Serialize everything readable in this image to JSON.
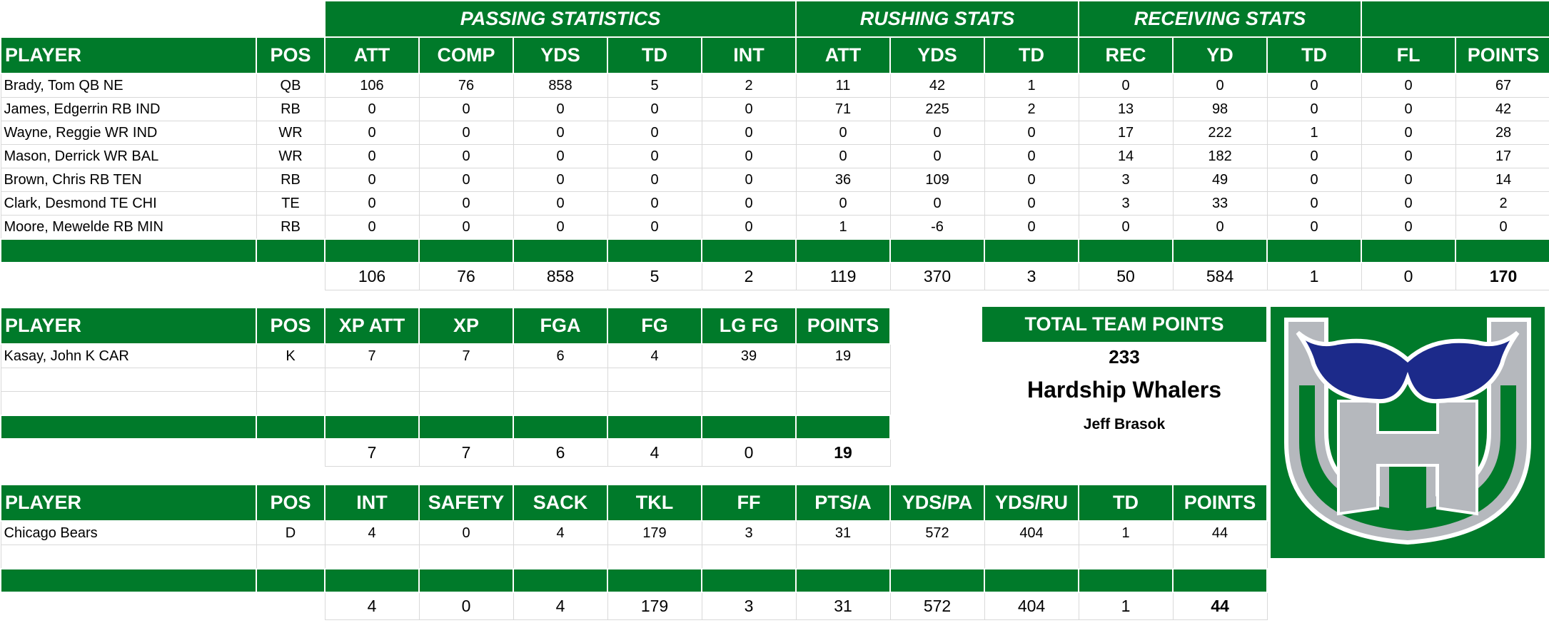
{
  "offense": {
    "group_headers": [
      "PASSING STATISTICS",
      "RUSHING STATS",
      "RECEIVING STATS"
    ],
    "columns": [
      "PLAYER",
      "POS",
      "ATT",
      "COMP",
      "YDS",
      "TD",
      "INT",
      "ATT",
      "YDS",
      "TD",
      "REC",
      "YD",
      "TD",
      "FL",
      "POINTS"
    ],
    "rows": [
      [
        "Brady, Tom QB NE",
        "QB",
        "106",
        "76",
        "858",
        "5",
        "2",
        "11",
        "42",
        "1",
        "0",
        "0",
        "0",
        "0",
        "67"
      ],
      [
        "James, Edgerrin RB IND",
        "RB",
        "0",
        "0",
        "0",
        "0",
        "0",
        "71",
        "225",
        "2",
        "13",
        "98",
        "0",
        "0",
        "42"
      ],
      [
        "Wayne, Reggie WR IND",
        "WR",
        "0",
        "0",
        "0",
        "0",
        "0",
        "0",
        "0",
        "0",
        "17",
        "222",
        "1",
        "0",
        "28"
      ],
      [
        "Mason, Derrick WR BAL",
        "WR",
        "0",
        "0",
        "0",
        "0",
        "0",
        "0",
        "0",
        "0",
        "14",
        "182",
        "0",
        "0",
        "17"
      ],
      [
        "Brown, Chris RB TEN",
        "RB",
        "0",
        "0",
        "0",
        "0",
        "0",
        "36",
        "109",
        "0",
        "3",
        "49",
        "0",
        "0",
        "14"
      ],
      [
        "Clark, Desmond TE CHI",
        "TE",
        "0",
        "0",
        "0",
        "0",
        "0",
        "0",
        "0",
        "0",
        "3",
        "33",
        "0",
        "0",
        "2"
      ],
      [
        "Moore, Mewelde RB MIN",
        "RB",
        "0",
        "0",
        "0",
        "0",
        "0",
        "1",
        "-6",
        "0",
        "0",
        "0",
        "0",
        "0",
        "0"
      ]
    ],
    "totals": [
      "106",
      "76",
      "858",
      "5",
      "2",
      "119",
      "370",
      "3",
      "50",
      "584",
      "1",
      "0",
      "170"
    ]
  },
  "kicker": {
    "columns": [
      "PLAYER",
      "POS",
      "XP ATT",
      "XP",
      "FGA",
      "FG",
      "LG FG",
      "POINTS"
    ],
    "rows": [
      [
        "Kasay, John K CAR",
        "K",
        "7",
        "7",
        "6",
        "4",
        "39",
        "19"
      ]
    ],
    "totals": [
      "7",
      "7",
      "6",
      "4",
      "0",
      "19"
    ]
  },
  "defense": {
    "columns": [
      "PLAYER",
      "POS",
      "INT",
      "SAFETY",
      "SACK",
      "TKL",
      "FF",
      "PTS/A",
      "YDS/PA",
      "YDS/RU",
      "TD",
      "POINTS"
    ],
    "rows": [
      [
        "Chicago Bears",
        "D",
        "4",
        "0",
        "4",
        "179",
        "3",
        "31",
        "572",
        "404",
        "1",
        "44"
      ]
    ],
    "totals": [
      "4",
      "0",
      "4",
      "179",
      "3",
      "31",
      "572",
      "404",
      "1",
      "44"
    ]
  },
  "team": {
    "total_label": "TOTAL TEAM POINTS",
    "total_points": "233",
    "name": "Hardship Whalers",
    "owner": "Jeff Brasok"
  },
  "logo": {
    "icon": "whale-tail-w-logo",
    "colors": {
      "green": "#007a2a",
      "navy": "#1c2a8a",
      "silver": "#b5b8bd"
    }
  }
}
